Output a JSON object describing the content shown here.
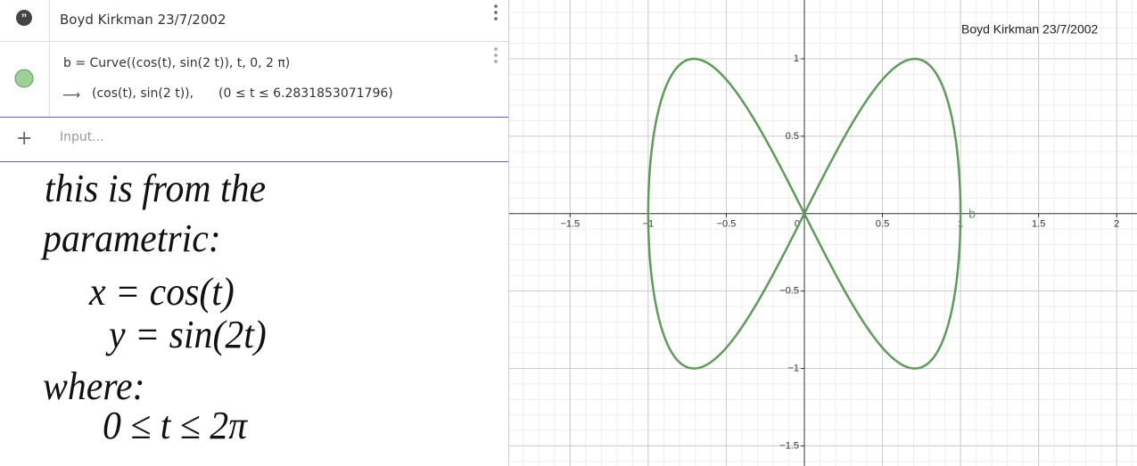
{
  "algebra": {
    "note": "Boyd Kirkman 23/7/2002",
    "definition": "b = Curve((cos(t), sin(2 t)), t, 0, 2 π)",
    "output": "(cos(t), sin(2 t)),",
    "output_range": "(0 ≤ t ≤ 6.2831853071796)",
    "input_placeholder": "Input..."
  },
  "notes": {
    "lines": [
      "this is from the",
      "parametric:",
      "x = cos(t)",
      "y = sin(2t)",
      "where:",
      "0 ≤ t ≤ 2π"
    ]
  },
  "graphics": {
    "text_label": "Boyd Kirkman 23/7/2002",
    "curve_label": "b",
    "curve_color": "#5e9c5a",
    "xlim": [
      -1.89,
      2.13
    ],
    "ylim": [
      -1.63,
      1.38
    ],
    "xticks": [
      {
        "value": -1.5,
        "label": "−1.5"
      },
      {
        "value": -1,
        "label": "−1"
      },
      {
        "value": -0.5,
        "label": "−0.5"
      },
      0,
      0.5,
      1,
      1.5,
      2
    ],
    "yticks": [
      {
        "value": -1.5,
        "label": "−1.5"
      },
      {
        "value": -1,
        "label": "−1"
      },
      {
        "value": -0.5,
        "label": "−0.5"
      },
      0.5,
      1
    ]
  }
}
